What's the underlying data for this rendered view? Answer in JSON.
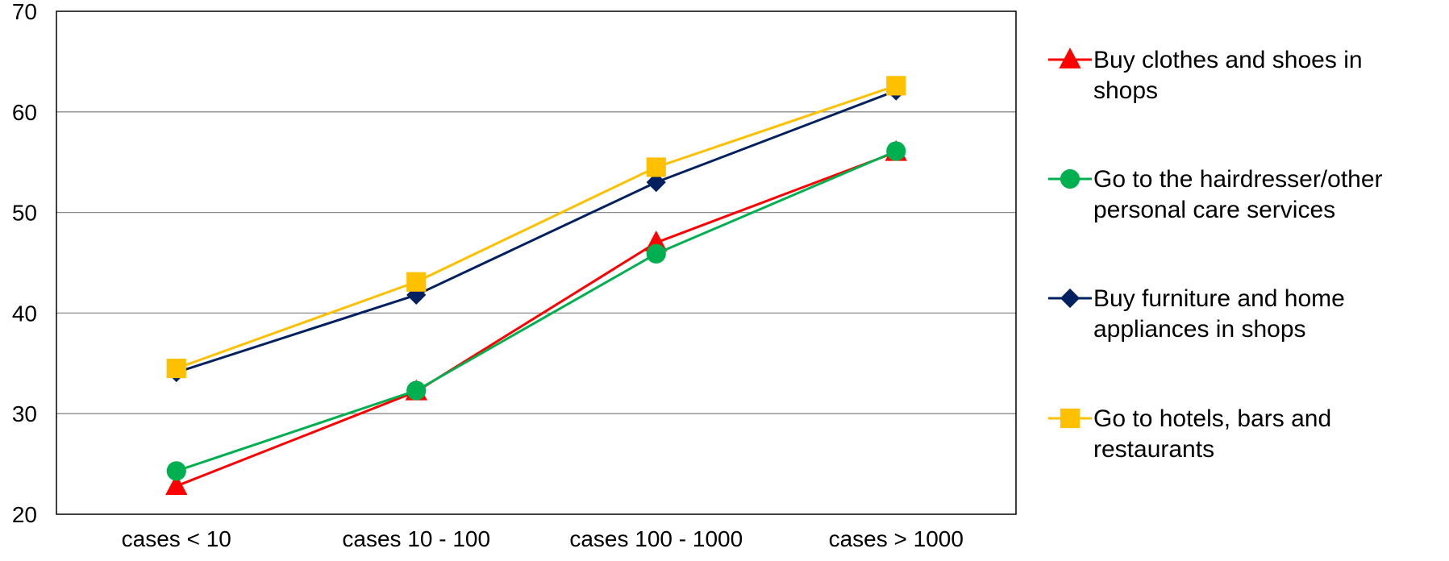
{
  "chart_data": {
    "type": "line",
    "title": "",
    "xlabel": "",
    "ylabel": "",
    "categories": [
      "cases < 10",
      "cases 10 - 100",
      "cases 100 - 1000",
      "cases > 1000"
    ],
    "ylim": [
      20,
      70
    ],
    "yticks": [
      20,
      30,
      40,
      50,
      60,
      70
    ],
    "grid": "horizontal",
    "legend_position": "right",
    "series": [
      {
        "name": "Buy clothes and shoes in shops",
        "values": [
          22.8,
          32.2,
          47.0,
          56.0
        ],
        "color": "#FF0000",
        "marker": "triangle"
      },
      {
        "name": "Go to the hairdresser/other personal care services",
        "values": [
          24.3,
          32.3,
          45.9,
          56.1
        ],
        "color": "#00B050",
        "marker": "circle"
      },
      {
        "name": "Buy furniture and home appliances in shops",
        "values": [
          34.1,
          41.8,
          53.0,
          62.1
        ],
        "color": "#002060",
        "marker": "diamond"
      },
      {
        "name": "Go to hotels, bars and restaurants",
        "values": [
          34.5,
          43.1,
          54.5,
          62.6
        ],
        "color": "#FFC000",
        "marker": "square"
      }
    ],
    "legend_lines": [
      [
        "Buy clothes and shoes in",
        "shops"
      ],
      [
        "Go to the hairdresser/other",
        "personal care services"
      ],
      [
        "Buy furniture and home",
        "appliances in shops"
      ],
      [
        "Go to hotels, bars and",
        "restaurants"
      ]
    ]
  }
}
